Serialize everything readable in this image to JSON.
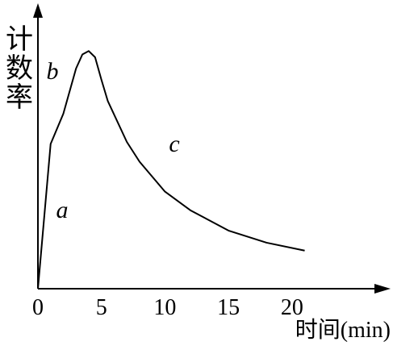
{
  "chart_data": {
    "type": "line",
    "y_label": "计数率",
    "x_label": "时间(min)",
    "x": [
      0,
      1,
      2,
      3,
      3.5,
      4,
      4.5,
      5,
      5.5,
      7,
      8,
      10,
      12,
      15,
      18,
      21
    ],
    "series": [
      {
        "color": "#000000",
        "values": [
          0,
          51.3,
          62,
          78,
          83,
          84.2,
          82,
          74,
          66.5,
          52,
          45,
          34.4,
          27.8,
          20.6,
          16.3,
          13.5
        ]
      }
    ],
    "xlim": [
      0,
      27
    ],
    "ylim": [
      0,
      100
    ],
    "xticks": [
      0,
      5,
      10,
      15,
      20
    ],
    "annotations": [
      "a",
      "b",
      "c"
    ]
  }
}
